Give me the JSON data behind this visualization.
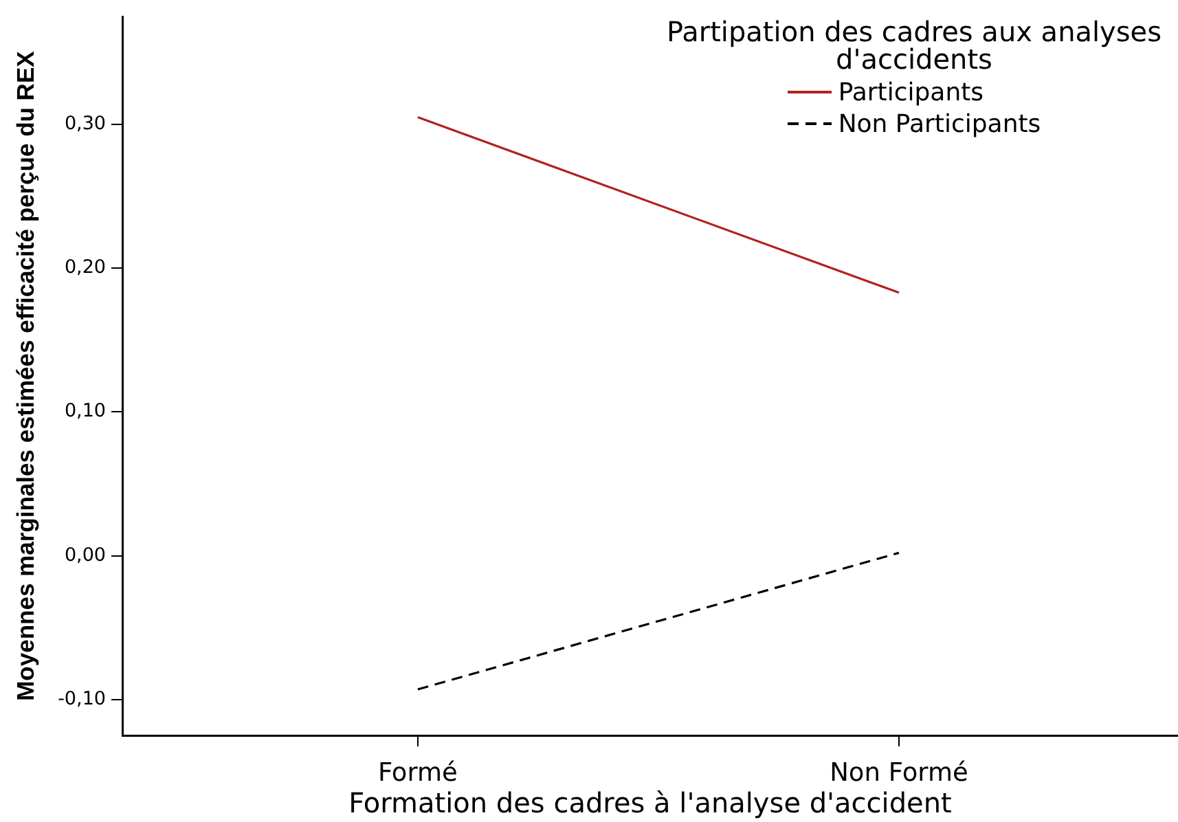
{
  "chart_data": {
    "type": "line",
    "xlabel": "Formation des cadres à l'analyse d'accident",
    "ylabel": "Moyennes marginales estimées efficacité perçue du REX",
    "legend_title": "Partipation des cadres aux analyses d'accidents",
    "categories": [
      "Formé",
      "Non Formé"
    ],
    "series": [
      {
        "name": "Participants",
        "color": "#b22222",
        "values": [
          0.305,
          0.183
        ]
      },
      {
        "name": "Non Participants",
        "color": "#000000",
        "values": [
          -0.093,
          0.002
        ],
        "line_style": "dashed"
      }
    ],
    "ylim": [
      -0.125,
      0.375
    ],
    "yticks": [
      {
        "value": -0.1,
        "label": "-0,10"
      },
      {
        "value": 0,
        "label": "0,00"
      },
      {
        "value": 0.1,
        "label": "0,10"
      },
      {
        "value": 0.2,
        "label": "0,20"
      },
      {
        "value": 0.3,
        "label": "0,30"
      }
    ],
    "legend": "top right",
    "marker": "none"
  }
}
